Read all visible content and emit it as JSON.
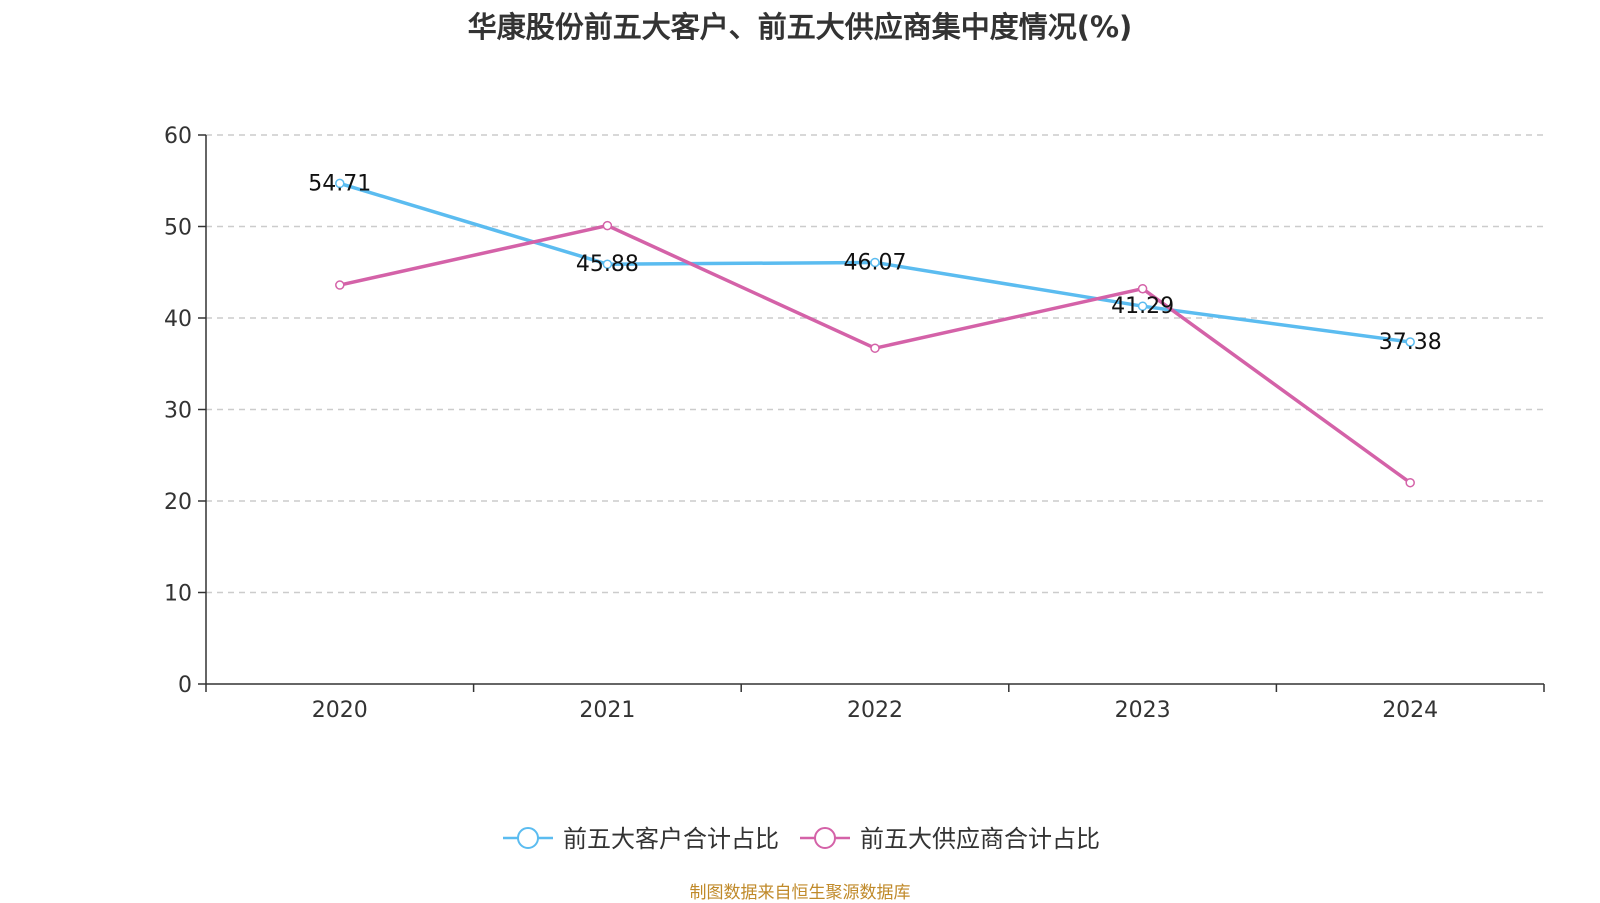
{
  "title": "华康股份前五大客户、前五大供应商集中度情况(%)",
  "source": "制图数据来自恒生聚源数据库",
  "chart_data": {
    "type": "line",
    "title": "华康股份前五大客户、前五大供应商集中度情况(%)",
    "xlabel": "",
    "ylabel": "",
    "categories": [
      "2020",
      "2021",
      "2022",
      "2023",
      "2024"
    ],
    "ylim": [
      0,
      60
    ],
    "yticks": [
      0,
      10,
      20,
      30,
      40,
      50,
      60
    ],
    "grid": true,
    "legend_position": "bottom-center",
    "series": [
      {
        "name": "前五大客户合计占比",
        "color": "#5bbcf0",
        "values": [
          54.71,
          45.88,
          46.07,
          41.29,
          37.38
        ],
        "show_labels": true,
        "labels": [
          "54.71",
          "45.88",
          "46.07",
          "41.29",
          "37.38"
        ]
      },
      {
        "name": "前五大供应商合计占比",
        "color": "#d462a8",
        "values": [
          43.6,
          50.1,
          36.7,
          43.2,
          22.0
        ],
        "show_labels": false,
        "labels": []
      }
    ]
  }
}
